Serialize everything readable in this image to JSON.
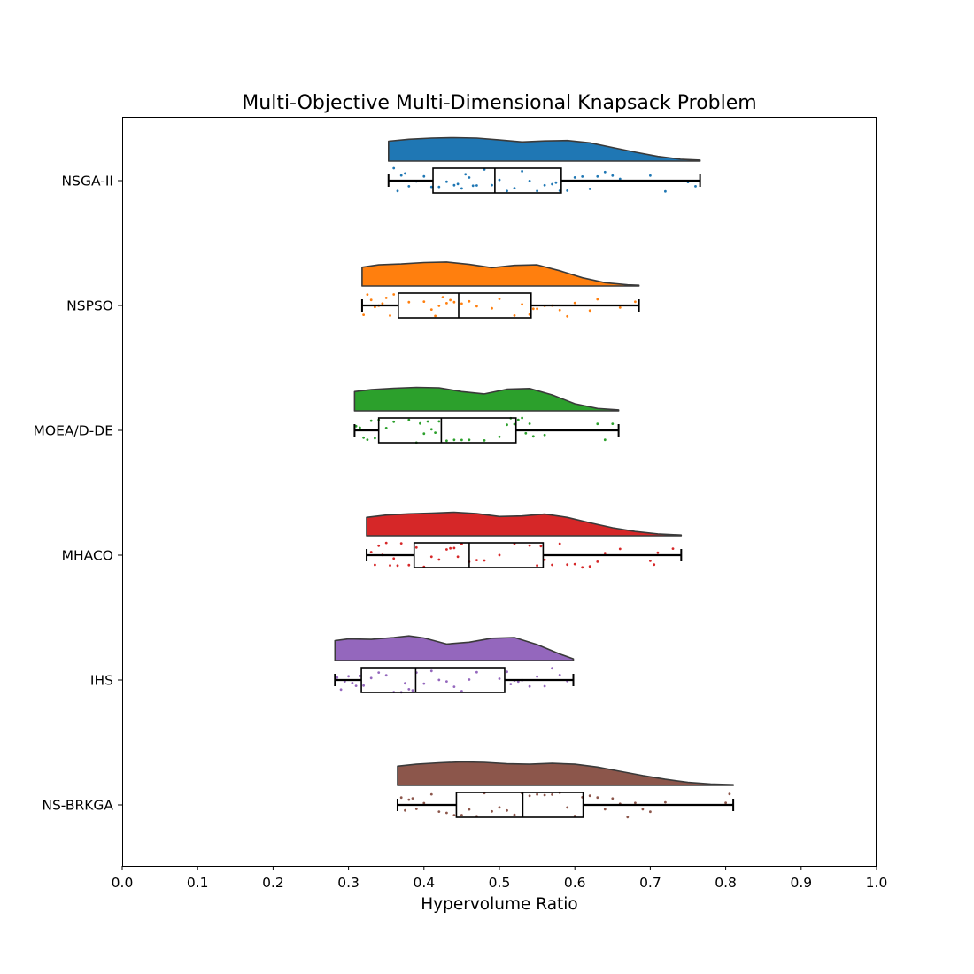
{
  "chart_data": {
    "type": "raincloud",
    "title": "Multi-Objective Multi-Dimensional Knapsack Problem",
    "xlabel": "Hypervolume Ratio",
    "ylabel": "",
    "xlim": [
      0.0,
      1.0
    ],
    "xticks": [
      "0.0",
      "0.1",
      "0.2",
      "0.3",
      "0.4",
      "0.5",
      "0.6",
      "0.7",
      "0.8",
      "0.9",
      "1.0"
    ],
    "grid": false,
    "series": [
      {
        "name": "NSGA-II",
        "color": "#1f77b4",
        "min": 0.353,
        "q1": 0.412,
        "median": 0.494,
        "q3": 0.582,
        "max": 0.766,
        "density_x": [
          0.353,
          0.38,
          0.41,
          0.44,
          0.47,
          0.5,
          0.53,
          0.56,
          0.59,
          0.62,
          0.65,
          0.68,
          0.71,
          0.74,
          0.766
        ],
        "density_y": [
          0.85,
          0.93,
          0.98,
          1.0,
          0.98,
          0.9,
          0.82,
          0.86,
          0.88,
          0.78,
          0.58,
          0.38,
          0.2,
          0.08,
          0.04
        ],
        "points": [
          0.36,
          0.365,
          0.37,
          0.375,
          0.38,
          0.39,
          0.4,
          0.41,
          0.42,
          0.43,
          0.44,
          0.445,
          0.45,
          0.455,
          0.46,
          0.465,
          0.47,
          0.48,
          0.49,
          0.5,
          0.51,
          0.52,
          0.53,
          0.54,
          0.55,
          0.56,
          0.57,
          0.575,
          0.58,
          0.59,
          0.6,
          0.61,
          0.62,
          0.63,
          0.64,
          0.65,
          0.66,
          0.7,
          0.72,
          0.75,
          0.76
        ]
      },
      {
        "name": "NSPSO",
        "color": "#ff7f0e",
        "min": 0.318,
        "q1": 0.366,
        "median": 0.446,
        "q3": 0.542,
        "max": 0.685,
        "density_x": [
          0.318,
          0.34,
          0.37,
          0.4,
          0.43,
          0.46,
          0.49,
          0.52,
          0.55,
          0.58,
          0.61,
          0.64,
          0.67,
          0.685
        ],
        "density_y": [
          0.8,
          0.9,
          0.94,
          1.0,
          1.02,
          0.92,
          0.78,
          0.88,
          0.9,
          0.65,
          0.35,
          0.14,
          0.05,
          0.03
        ],
        "points": [
          0.32,
          0.325,
          0.33,
          0.335,
          0.34,
          0.345,
          0.35,
          0.355,
          0.36,
          0.38,
          0.4,
          0.41,
          0.415,
          0.42,
          0.425,
          0.43,
          0.435,
          0.44,
          0.45,
          0.46,
          0.47,
          0.49,
          0.5,
          0.52,
          0.53,
          0.54,
          0.545,
          0.55,
          0.56,
          0.57,
          0.58,
          0.59,
          0.6,
          0.62,
          0.63,
          0.66,
          0.68
        ]
      },
      {
        "name": "MOEA/D-DE",
        "color": "#2ca02c",
        "min": 0.308,
        "q1": 0.34,
        "median": 0.423,
        "q3": 0.522,
        "max": 0.658,
        "density_x": [
          0.308,
          0.33,
          0.36,
          0.39,
          0.42,
          0.45,
          0.48,
          0.51,
          0.54,
          0.57,
          0.6,
          0.63,
          0.658
        ],
        "density_y": [
          0.82,
          0.9,
          0.96,
          1.0,
          0.98,
          0.82,
          0.72,
          0.92,
          0.95,
          0.68,
          0.3,
          0.1,
          0.04
        ],
        "points": [
          0.31,
          0.315,
          0.32,
          0.325,
          0.33,
          0.335,
          0.34,
          0.35,
          0.36,
          0.38,
          0.39,
          0.395,
          0.4,
          0.405,
          0.41,
          0.415,
          0.42,
          0.43,
          0.44,
          0.45,
          0.46,
          0.48,
          0.5,
          0.51,
          0.515,
          0.52,
          0.525,
          0.53,
          0.535,
          0.54,
          0.545,
          0.55,
          0.56,
          0.63,
          0.64,
          0.65
        ]
      },
      {
        "name": "MHACO",
        "color": "#d62728",
        "min": 0.324,
        "q1": 0.387,
        "median": 0.46,
        "q3": 0.558,
        "max": 0.741,
        "density_x": [
          0.324,
          0.35,
          0.38,
          0.41,
          0.44,
          0.47,
          0.5,
          0.53,
          0.56,
          0.59,
          0.62,
          0.65,
          0.68,
          0.71,
          0.741
        ],
        "density_y": [
          0.78,
          0.88,
          0.93,
          0.96,
          1.0,
          0.94,
          0.82,
          0.84,
          0.92,
          0.78,
          0.55,
          0.34,
          0.18,
          0.08,
          0.03
        ],
        "points": [
          0.33,
          0.335,
          0.34,
          0.345,
          0.35,
          0.355,
          0.36,
          0.365,
          0.37,
          0.38,
          0.39,
          0.4,
          0.41,
          0.42,
          0.43,
          0.435,
          0.44,
          0.445,
          0.45,
          0.46,
          0.47,
          0.48,
          0.5,
          0.52,
          0.54,
          0.55,
          0.555,
          0.56,
          0.57,
          0.58,
          0.59,
          0.6,
          0.61,
          0.62,
          0.63,
          0.64,
          0.66,
          0.7,
          0.705,
          0.71,
          0.73
        ]
      },
      {
        "name": "IHS",
        "color": "#9467bd",
        "min": 0.282,
        "q1": 0.317,
        "median": 0.389,
        "q3": 0.507,
        "max": 0.598,
        "density_x": [
          0.282,
          0.3,
          0.33,
          0.36,
          0.38,
          0.4,
          0.43,
          0.46,
          0.49,
          0.52,
          0.55,
          0.58,
          0.598
        ],
        "density_y": [
          0.85,
          0.92,
          0.9,
          0.98,
          1.05,
          0.96,
          0.7,
          0.78,
          0.95,
          0.98,
          0.68,
          0.28,
          0.07
        ],
        "points": [
          0.285,
          0.29,
          0.295,
          0.3,
          0.305,
          0.31,
          0.315,
          0.32,
          0.33,
          0.34,
          0.35,
          0.36,
          0.37,
          0.375,
          0.38,
          0.385,
          0.39,
          0.4,
          0.41,
          0.42,
          0.43,
          0.44,
          0.45,
          0.46,
          0.47,
          0.5,
          0.51,
          0.515,
          0.52,
          0.525,
          0.53,
          0.54,
          0.55,
          0.56,
          0.57,
          0.58,
          0.59
        ]
      },
      {
        "name": "NS-BRKGA",
        "color": "#8c564b",
        "min": 0.365,
        "q1": 0.443,
        "median": 0.531,
        "q3": 0.611,
        "max": 0.81,
        "density_x": [
          0.365,
          0.39,
          0.42,
          0.45,
          0.48,
          0.51,
          0.54,
          0.57,
          0.6,
          0.63,
          0.66,
          0.69,
          0.72,
          0.75,
          0.78,
          0.81
        ],
        "density_y": [
          0.82,
          0.9,
          0.96,
          1.0,
          0.98,
          0.92,
          0.9,
          0.94,
          0.9,
          0.78,
          0.6,
          0.42,
          0.26,
          0.13,
          0.06,
          0.03
        ],
        "points": [
          0.37,
          0.375,
          0.38,
          0.385,
          0.39,
          0.4,
          0.41,
          0.42,
          0.43,
          0.44,
          0.45,
          0.46,
          0.47,
          0.48,
          0.49,
          0.5,
          0.51,
          0.52,
          0.53,
          0.54,
          0.55,
          0.56,
          0.57,
          0.58,
          0.59,
          0.6,
          0.61,
          0.62,
          0.63,
          0.64,
          0.65,
          0.66,
          0.67,
          0.68,
          0.69,
          0.7,
          0.72,
          0.8,
          0.805
        ]
      }
    ]
  }
}
